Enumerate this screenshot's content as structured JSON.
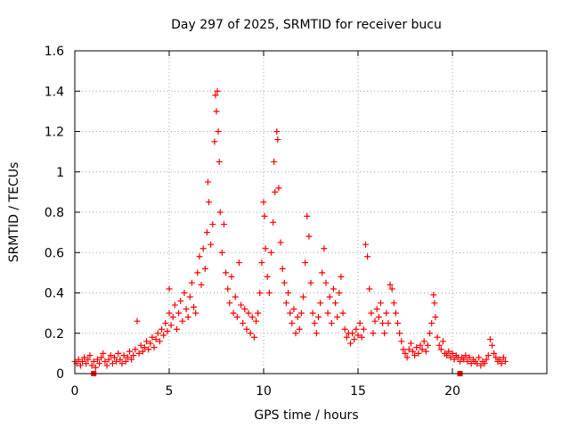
{
  "chart_data": {
    "type": "scatter",
    "title": "Day 297 of 2025, SRMTID for receiver bucu",
    "xlabel": "GPS time / hours",
    "ylabel": "SRMTID / TECUs",
    "xlim": [
      0,
      25
    ],
    "ylim": [
      0,
      1.6
    ],
    "xticks": [
      0,
      5,
      10,
      15,
      20
    ],
    "xtick_labels": [
      "0",
      "5",
      "10",
      "15",
      "20"
    ],
    "yticks": [
      0,
      0.2,
      0.4,
      0.6,
      0.8,
      1,
      1.2,
      1.4,
      1.6
    ],
    "ytick_labels": [
      "0",
      "0.2",
      "0.4",
      "0.6",
      "0.8",
      "1",
      "1.2",
      "1.4",
      "1.6"
    ],
    "grid": true,
    "marker_color": "#ff0000",
    "marker": "plus",
    "series": [
      {
        "name": "SRMTID",
        "points": [
          [
            0.0,
            0.06
          ],
          [
            0.1,
            0.05
          ],
          [
            0.2,
            0.07
          ],
          [
            0.3,
            0.04
          ],
          [
            0.4,
            0.06
          ],
          [
            0.5,
            0.08
          ],
          [
            0.6,
            0.05
          ],
          [
            0.7,
            0.07
          ],
          [
            0.8,
            0.09
          ],
          [
            0.9,
            0.04
          ],
          [
            1.0,
            0.06
          ],
          [
            1.1,
            0.03
          ],
          [
            1.2,
            0.07
          ],
          [
            1.3,
            0.05
          ],
          [
            1.4,
            0.08
          ],
          [
            1.5,
            0.1
          ],
          [
            1.6,
            0.06
          ],
          [
            1.7,
            0.04
          ],
          [
            1.8,
            0.07
          ],
          [
            1.9,
            0.09
          ],
          [
            2.0,
            0.05
          ],
          [
            2.1,
            0.08
          ],
          [
            2.2,
            0.06
          ],
          [
            2.3,
            0.1
          ],
          [
            2.4,
            0.07
          ],
          [
            2.5,
            0.05
          ],
          [
            2.6,
            0.09
          ],
          [
            2.7,
            0.06
          ],
          [
            2.8,
            0.08
          ],
          [
            2.9,
            0.11
          ],
          [
            3.0,
            0.07
          ],
          [
            3.1,
            0.09
          ],
          [
            3.2,
            0.12
          ],
          [
            3.3,
            0.26
          ],
          [
            3.4,
            0.1
          ],
          [
            3.5,
            0.14
          ],
          [
            3.6,
            0.11
          ],
          [
            3.7,
            0.13
          ],
          [
            3.8,
            0.16
          ],
          [
            3.9,
            0.12
          ],
          [
            4.0,
            0.15
          ],
          [
            4.1,
            0.18
          ],
          [
            4.2,
            0.13
          ],
          [
            4.3,
            0.17
          ],
          [
            4.4,
            0.2
          ],
          [
            4.5,
            0.16
          ],
          [
            4.6,
            0.22
          ],
          [
            4.7,
            0.19
          ],
          [
            4.8,
            0.25
          ],
          [
            4.9,
            0.21
          ],
          [
            5.0,
            0.3
          ],
          [
            5.0,
            0.42
          ],
          [
            5.1,
            0.24
          ],
          [
            5.2,
            0.28
          ],
          [
            5.3,
            0.34
          ],
          [
            5.4,
            0.22
          ],
          [
            5.5,
            0.3
          ],
          [
            5.6,
            0.36
          ],
          [
            5.7,
            0.26
          ],
          [
            5.8,
            0.4
          ],
          [
            5.9,
            0.32
          ],
          [
            6.0,
            0.28
          ],
          [
            6.1,
            0.38
          ],
          [
            6.2,
            0.45
          ],
          [
            6.3,
            0.33
          ],
          [
            6.4,
            0.3
          ],
          [
            6.5,
            0.5
          ],
          [
            6.6,
            0.58
          ],
          [
            6.7,
            0.44
          ],
          [
            6.8,
            0.62
          ],
          [
            6.9,
            0.52
          ],
          [
            7.0,
            0.7
          ],
          [
            7.05,
            0.95
          ],
          [
            7.1,
            0.85
          ],
          [
            7.2,
            0.64
          ],
          [
            7.3,
            0.74
          ],
          [
            7.4,
            1.15
          ],
          [
            7.45,
            1.38
          ],
          [
            7.5,
            1.3
          ],
          [
            7.55,
            1.4
          ],
          [
            7.6,
            1.2
          ],
          [
            7.65,
            1.05
          ],
          [
            7.7,
            0.8
          ],
          [
            7.8,
            0.6
          ],
          [
            7.9,
            0.74
          ],
          [
            8.0,
            0.5
          ],
          [
            8.1,
            0.42
          ],
          [
            8.2,
            0.35
          ],
          [
            8.3,
            0.48
          ],
          [
            8.4,
            0.3
          ],
          [
            8.5,
            0.38
          ],
          [
            8.6,
            0.28
          ],
          [
            8.7,
            0.55
          ],
          [
            8.8,
            0.34
          ],
          [
            8.9,
            0.25
          ],
          [
            9.0,
            0.32
          ],
          [
            9.1,
            0.22
          ],
          [
            9.2,
            0.3
          ],
          [
            9.3,
            0.2
          ],
          [
            9.4,
            0.28
          ],
          [
            9.5,
            0.18
          ],
          [
            9.6,
            0.26
          ],
          [
            9.7,
            0.3
          ],
          [
            9.8,
            0.4
          ],
          [
            9.9,
            0.55
          ],
          [
            10.0,
            0.85
          ],
          [
            10.05,
            0.78
          ],
          [
            10.1,
            0.62
          ],
          [
            10.2,
            0.48
          ],
          [
            10.3,
            0.4
          ],
          [
            10.4,
            0.6
          ],
          [
            10.5,
            0.75
          ],
          [
            10.55,
            1.05
          ],
          [
            10.6,
            0.9
          ],
          [
            10.7,
            1.2
          ],
          [
            10.75,
            1.16
          ],
          [
            10.8,
            0.92
          ],
          [
            10.9,
            0.65
          ],
          [
            11.0,
            0.52
          ],
          [
            11.1,
            0.45
          ],
          [
            11.2,
            0.35
          ],
          [
            11.3,
            0.4
          ],
          [
            11.4,
            0.3
          ],
          [
            11.5,
            0.25
          ],
          [
            11.6,
            0.32
          ],
          [
            11.7,
            0.2
          ],
          [
            11.8,
            0.28
          ],
          [
            11.9,
            0.22
          ],
          [
            12.0,
            0.3
          ],
          [
            12.1,
            0.38
          ],
          [
            12.2,
            0.55
          ],
          [
            12.3,
            0.78
          ],
          [
            12.4,
            0.68
          ],
          [
            12.5,
            0.45
          ],
          [
            12.6,
            0.3
          ],
          [
            12.7,
            0.25
          ],
          [
            12.8,
            0.2
          ],
          [
            12.9,
            0.28
          ],
          [
            13.0,
            0.35
          ],
          [
            13.1,
            0.5
          ],
          [
            13.2,
            0.62
          ],
          [
            13.3,
            0.45
          ],
          [
            13.4,
            0.3
          ],
          [
            13.5,
            0.38
          ],
          [
            13.6,
            0.25
          ],
          [
            13.7,
            0.42
          ],
          [
            13.8,
            0.35
          ],
          [
            13.9,
            0.28
          ],
          [
            14.0,
            0.4
          ],
          [
            14.1,
            0.48
          ],
          [
            14.2,
            0.3
          ],
          [
            14.3,
            0.22
          ],
          [
            14.4,
            0.18
          ],
          [
            14.5,
            0.2
          ],
          [
            14.6,
            0.15
          ],
          [
            14.7,
            0.2
          ],
          [
            14.8,
            0.17
          ],
          [
            14.9,
            0.22
          ],
          [
            15.0,
            0.19
          ],
          [
            15.1,
            0.25
          ],
          [
            15.2,
            0.18
          ],
          [
            15.3,
            0.22
          ],
          [
            15.4,
            0.64
          ],
          [
            15.5,
            0.58
          ],
          [
            15.6,
            0.42
          ],
          [
            15.7,
            0.3
          ],
          [
            15.8,
            0.2
          ],
          [
            15.9,
            0.26
          ],
          [
            16.0,
            0.32
          ],
          [
            16.1,
            0.28
          ],
          [
            16.2,
            0.35
          ],
          [
            16.3,
            0.25
          ],
          [
            16.4,
            0.2
          ],
          [
            16.5,
            0.3
          ],
          [
            16.6,
            0.25
          ],
          [
            16.7,
            0.44
          ],
          [
            16.8,
            0.42
          ],
          [
            16.9,
            0.35
          ],
          [
            17.0,
            0.3
          ],
          [
            17.1,
            0.25
          ],
          [
            17.2,
            0.2
          ],
          [
            17.3,
            0.16
          ],
          [
            17.4,
            0.12
          ],
          [
            17.5,
            0.1
          ],
          [
            17.6,
            0.08
          ],
          [
            17.7,
            0.12
          ],
          [
            17.8,
            0.15
          ],
          [
            17.9,
            0.11
          ],
          [
            18.0,
            0.09
          ],
          [
            18.1,
            0.13
          ],
          [
            18.2,
            0.1
          ],
          [
            18.3,
            0.14
          ],
          [
            18.4,
            0.12
          ],
          [
            18.5,
            0.16
          ],
          [
            18.6,
            0.11
          ],
          [
            18.7,
            0.14
          ],
          [
            18.8,
            0.2
          ],
          [
            18.9,
            0.25
          ],
          [
            19.0,
            0.39
          ],
          [
            19.05,
            0.35
          ],
          [
            19.1,
            0.28
          ],
          [
            19.2,
            0.18
          ],
          [
            19.3,
            0.14
          ],
          [
            19.4,
            0.12
          ],
          [
            19.5,
            0.16
          ],
          [
            19.6,
            0.1
          ],
          [
            19.7,
            0.09
          ],
          [
            19.8,
            0.11
          ],
          [
            19.9,
            0.08
          ],
          [
            20.0,
            0.1
          ],
          [
            20.1,
            0.07
          ],
          [
            20.2,
            0.09
          ],
          [
            20.3,
            0.08
          ],
          [
            20.4,
            0.06
          ],
          [
            20.5,
            0.08
          ],
          [
            20.6,
            0.07
          ],
          [
            20.7,
            0.09
          ],
          [
            20.8,
            0.06
          ],
          [
            20.9,
            0.08
          ],
          [
            21.0,
            0.05
          ],
          [
            21.1,
            0.07
          ],
          [
            21.2,
            0.06
          ],
          [
            21.3,
            0.05
          ],
          [
            21.4,
            0.08
          ],
          [
            21.5,
            0.04
          ],
          [
            21.6,
            0.06
          ],
          [
            21.7,
            0.05
          ],
          [
            21.8,
            0.07
          ],
          [
            21.9,
            0.09
          ],
          [
            22.0,
            0.17
          ],
          [
            22.1,
            0.14
          ],
          [
            22.2,
            0.1
          ],
          [
            22.3,
            0.08
          ],
          [
            22.4,
            0.06
          ],
          [
            22.5,
            0.07
          ],
          [
            22.6,
            0.05
          ],
          [
            22.7,
            0.08
          ],
          [
            22.8,
            0.06
          ]
        ]
      }
    ],
    "square_markers": [
      [
        1.0,
        0.0
      ],
      [
        20.4,
        0.0
      ]
    ]
  }
}
